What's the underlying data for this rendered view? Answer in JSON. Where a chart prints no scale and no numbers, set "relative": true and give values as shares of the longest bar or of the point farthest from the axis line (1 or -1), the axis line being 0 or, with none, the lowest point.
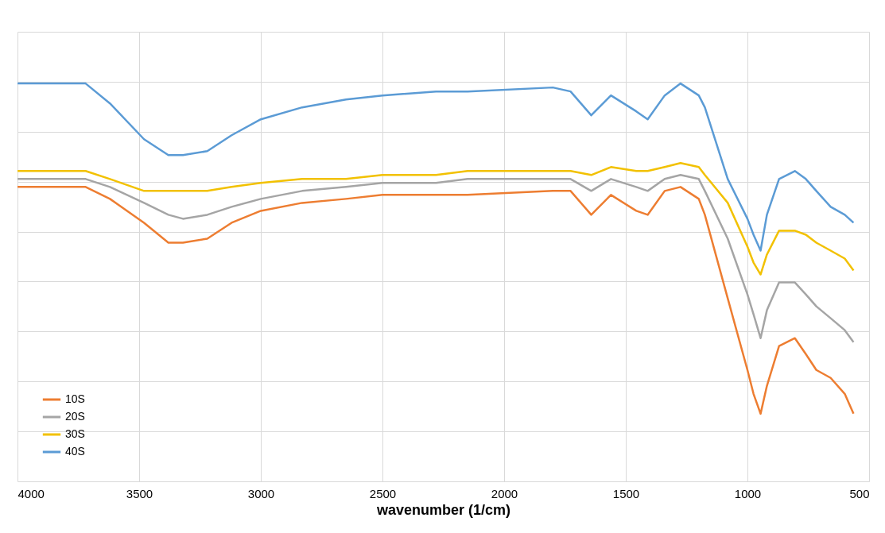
{
  "chart_data": {
    "type": "line",
    "relative": true,
    "xlabel": "wavenumber (1/cm)",
    "x": [
      4000,
      3720,
      3620,
      3480,
      3380,
      3320,
      3220,
      3120,
      3000,
      2830,
      2650,
      2500,
      2280,
      2150,
      1800,
      1727,
      1642,
      1561,
      1457,
      1410,
      1340,
      1275,
      1200,
      1175,
      1081,
      1000,
      975,
      946,
      920,
      870,
      805,
      760,
      717,
      658,
      600,
      564
    ],
    "xlim": [
      4000,
      500
    ],
    "xticks": [
      4000,
      3500,
      3000,
      2500,
      2000,
      1500,
      1000,
      500
    ],
    "grid": true,
    "legend": "bottom left",
    "marker": "none",
    "line_style": "solid",
    "series": [
      {
        "name": "10S",
        "color": "#ed7d31",
        "values": [
          0.74,
          0.74,
          0.71,
          0.65,
          0.6,
          0.6,
          0.61,
          0.65,
          0.68,
          0.7,
          0.71,
          0.72,
          0.72,
          0.72,
          0.73,
          0.73,
          0.67,
          0.72,
          0.68,
          0.67,
          0.73,
          0.74,
          0.71,
          0.67,
          0.46,
          0.28,
          0.22,
          0.17,
          0.24,
          0.34,
          0.36,
          0.32,
          0.28,
          0.26,
          0.22,
          0.17
        ]
      },
      {
        "name": "20S",
        "color": "#a5a5a5",
        "values": [
          0.76,
          0.76,
          0.74,
          0.7,
          0.67,
          0.66,
          0.67,
          0.69,
          0.71,
          0.73,
          0.74,
          0.75,
          0.75,
          0.76,
          0.76,
          0.76,
          0.73,
          0.76,
          0.74,
          0.73,
          0.76,
          0.77,
          0.76,
          0.73,
          0.61,
          0.47,
          0.42,
          0.36,
          0.43,
          0.5,
          0.5,
          0.47,
          0.44,
          0.41,
          0.38,
          0.35
        ]
      },
      {
        "name": "30S",
        "color": "#f2c100",
        "values": [
          0.78,
          0.78,
          0.76,
          0.73,
          0.73,
          0.73,
          0.73,
          0.74,
          0.75,
          0.76,
          0.76,
          0.77,
          0.77,
          0.78,
          0.78,
          0.78,
          0.77,
          0.79,
          0.78,
          0.78,
          0.79,
          0.8,
          0.79,
          0.77,
          0.7,
          0.59,
          0.55,
          0.52,
          0.57,
          0.63,
          0.63,
          0.62,
          0.6,
          0.58,
          0.56,
          0.53
        ]
      },
      {
        "name": "40S",
        "color": "#5b9bd5",
        "values": [
          1.0,
          1.0,
          0.95,
          0.86,
          0.82,
          0.82,
          0.83,
          0.87,
          0.91,
          0.94,
          0.96,
          0.97,
          0.98,
          0.98,
          0.99,
          0.98,
          0.92,
          0.97,
          0.93,
          0.91,
          0.97,
          1.0,
          0.97,
          0.94,
          0.76,
          0.66,
          0.62,
          0.58,
          0.67,
          0.76,
          0.78,
          0.76,
          0.73,
          0.69,
          0.67,
          0.65
        ]
      }
    ]
  }
}
